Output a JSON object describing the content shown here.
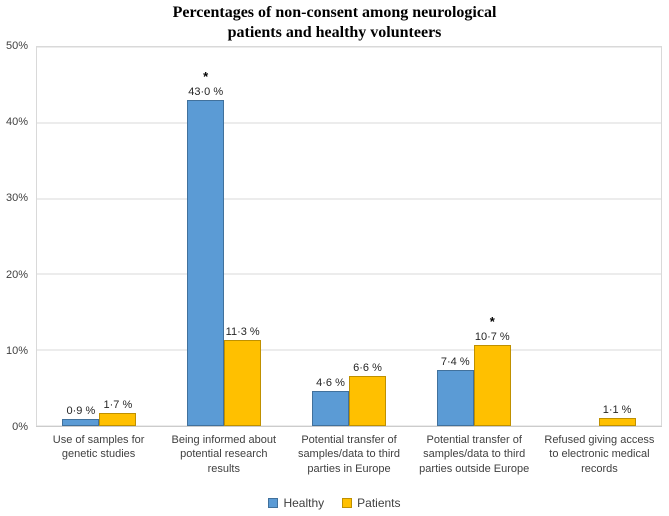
{
  "title_lines": [
    "Percentages of non-consent among neurological",
    "patients and healthy volunteers"
  ],
  "chart_data": {
    "type": "bar",
    "title": "Percentages of non-consent among neurological patients and healthy volunteers",
    "categories": [
      "Use of samples for genetic studies",
      "Being informed about potential research results",
      "Potential transfer of samples/data to third parties in Europe",
      "Potential transfer of samples/data to third parties outside Europe",
      "Refused giving access to electronic medical records"
    ],
    "series": [
      {
        "name": "Healthy",
        "color": "#5B9BD5",
        "border_color": "#41719C",
        "values": [
          0.9,
          43.0,
          4.6,
          7.4,
          null
        ],
        "labels": [
          "0·9 %",
          "43·0 %",
          "4·6 %",
          "7·4 %",
          ""
        ],
        "significance": [
          false,
          true,
          false,
          false,
          false
        ]
      },
      {
        "name": "Patients",
        "color": "#FFC000",
        "border_color": "#BF9000",
        "values": [
          1.7,
          11.3,
          6.6,
          10.7,
          1.1
        ],
        "labels": [
          "1·7 %",
          "11·3 %",
          "6·6 %",
          "10·7 %",
          "1·1 %"
        ],
        "significance": [
          false,
          false,
          false,
          true,
          false
        ]
      }
    ],
    "xlabel": "",
    "ylabel": "",
    "ylim": [
      0,
      50
    ],
    "yticks": [
      "0%",
      "10%",
      "20%",
      "30%",
      "40%",
      "50%"
    ],
    "grid": true,
    "legend_position": "bottom",
    "significance_marker": "*",
    "decimal_separator": "·"
  }
}
